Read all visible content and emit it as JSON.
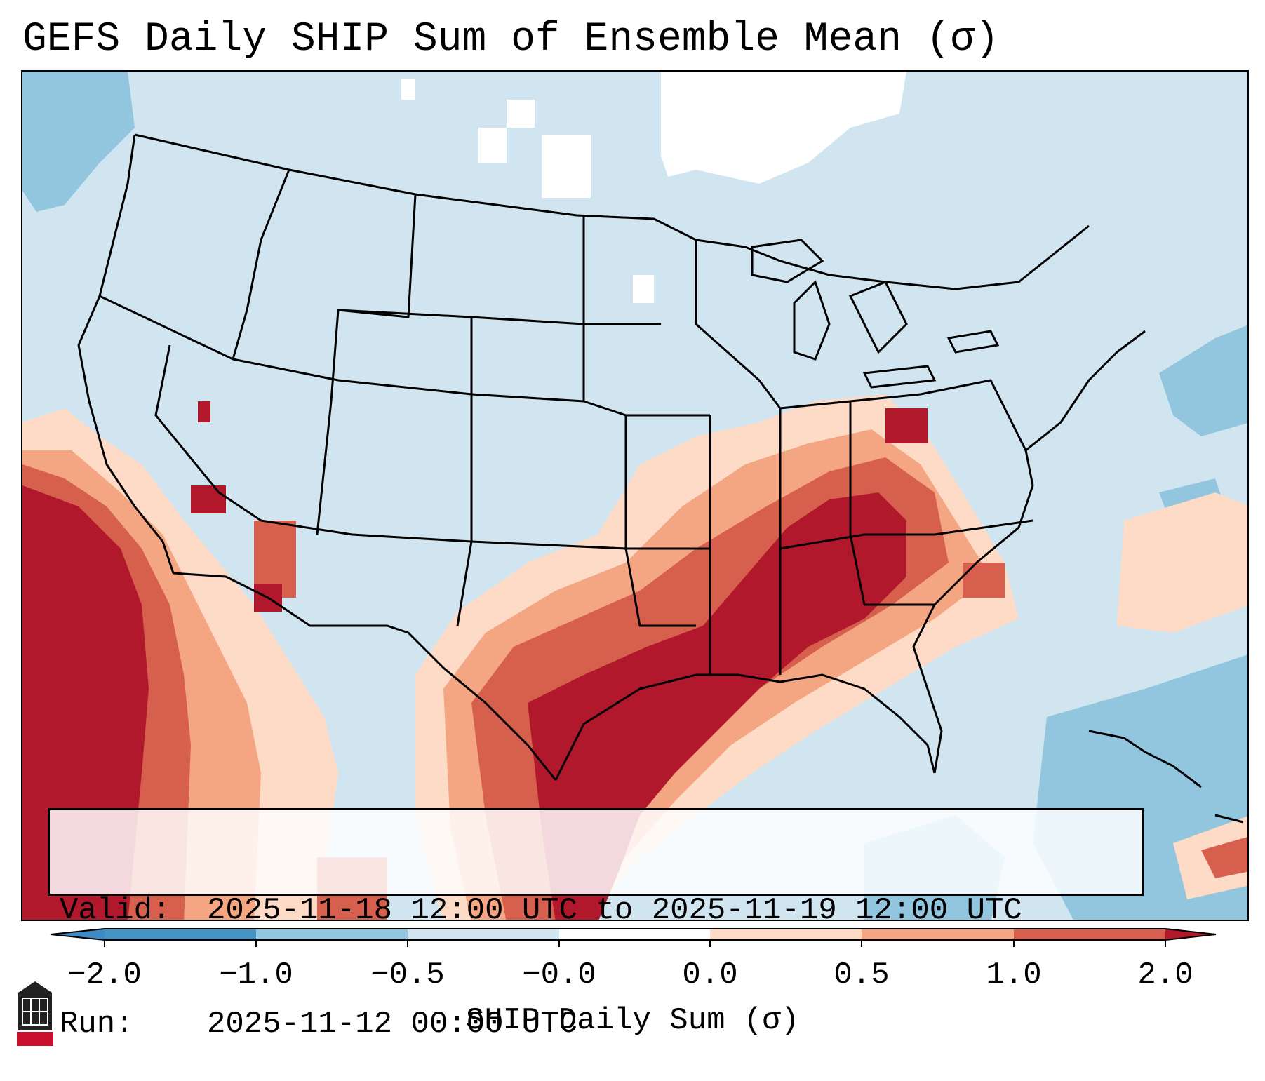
{
  "title": "GEFS Daily SHIP Sum of Ensemble Mean (σ)",
  "info": {
    "valid_label": "Valid:",
    "valid_value": "2025-11-18 12:00 UTC to 2025-11-19 12:00 UTC",
    "run_label": "Run:",
    "run_value": "2025-11-12 00:00 UTC"
  },
  "colorbar": {
    "label": "SHIP Daily Sum (σ)",
    "ticks": [
      "−2.0",
      "−1.0",
      "−0.5",
      "−0.0",
      "0.0",
      "0.5",
      "1.0",
      "2.0"
    ],
    "bins": [
      {
        "range": "< -2.0",
        "color": "#3f8ac5"
      },
      {
        "range": "-2.0 to -1.0",
        "color": "#4393c3"
      },
      {
        "range": "-1.0 to -0.5",
        "color": "#92c5de"
      },
      {
        "range": "-0.5 to -0.0",
        "color": "#d1e5f0"
      },
      {
        "range": "-0.0 to 0.0",
        "color": "#ffffff"
      },
      {
        "range": "0.0 to 0.5",
        "color": "#fddbc7"
      },
      {
        "range": "0.5 to 1.0",
        "color": "#f4a582"
      },
      {
        "range": "1.0 to 2.0",
        "color": "#d6604d"
      },
      {
        "range": "> 2.0",
        "color": "#b2182b"
      }
    ]
  },
  "colors": {
    "strong_positive": "#b2182b",
    "moderate_positive": "#d6604d",
    "weak_positive": "#f4a582",
    "slight_positive": "#fddbc7",
    "slight_negative": "#d1e5f0",
    "weak_negative": "#92c5de",
    "moderate_negative": "#4393c3",
    "near_zero": "#ffffff"
  },
  "icons": {
    "logo": "niu-logo-icon"
  }
}
